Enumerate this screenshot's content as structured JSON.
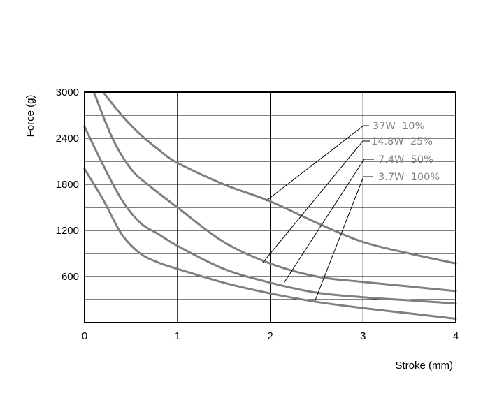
{
  "chart_data": {
    "type": "line",
    "title": "",
    "xlabel": "Stroke (mm)",
    "ylabel": "Force (g)",
    "xlim": [
      0,
      4
    ],
    "ylim": [
      0,
      3000
    ],
    "x_ticks": [
      "0",
      "1",
      "2",
      "3",
      "4"
    ],
    "y_ticks": [
      "3000",
      "2400",
      "1800",
      "1200",
      "600"
    ],
    "grid": true,
    "series": [
      {
        "name": "37W 10%",
        "x": [
          0.2,
          0.4,
          0.6,
          0.8,
          1.0,
          1.5,
          2.0,
          2.5,
          3.0,
          3.5,
          4.0
        ],
        "values": [
          3000,
          2700,
          2450,
          2250,
          2080,
          1800,
          1580,
          1300,
          1050,
          900,
          770
        ]
      },
      {
        "name": "14.8W 25%",
        "x": [
          0.1,
          0.3,
          0.5,
          0.7,
          1.0,
          1.5,
          2.0,
          2.5,
          3.0,
          3.5,
          4.0
        ],
        "values": [
          3000,
          2400,
          2000,
          1780,
          1500,
          1050,
          770,
          600,
          530,
          470,
          410
        ]
      },
      {
        "name": "7.4W 50%",
        "x": [
          0.0,
          0.2,
          0.4,
          0.6,
          0.8,
          1.0,
          1.5,
          2.0,
          2.5,
          3.0,
          3.5,
          4.0
        ],
        "values": [
          2550,
          2050,
          1600,
          1300,
          1150,
          1000,
          700,
          520,
          390,
          330,
          290,
          250
        ]
      },
      {
        "name": "3.7W 100%",
        "x": [
          0.0,
          0.2,
          0.4,
          0.6,
          0.8,
          1.0,
          1.5,
          2.0,
          2.5,
          3.0,
          3.5,
          4.0
        ],
        "values": [
          2000,
          1600,
          1150,
          900,
          780,
          700,
          520,
          380,
          270,
          190,
          120,
          50
        ]
      }
    ],
    "annotations": [
      "37W  10%",
      "14.8W  25%",
      "7.4W  50%",
      "3.7W  100%"
    ]
  }
}
